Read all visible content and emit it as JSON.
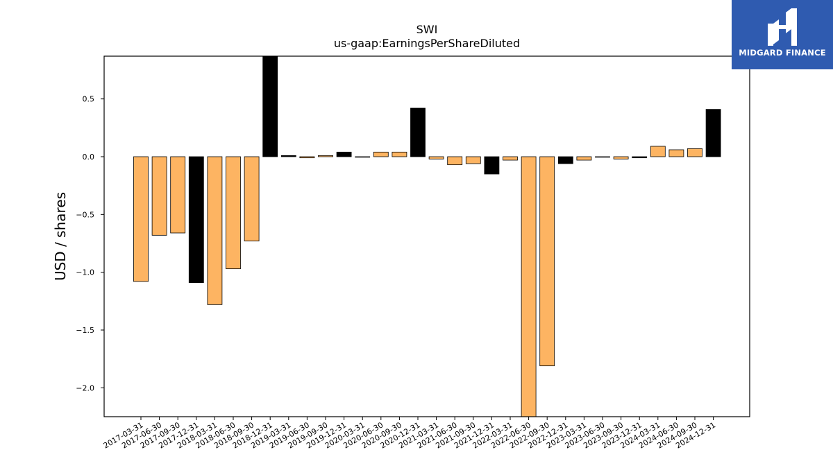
{
  "brand": {
    "name": "MIDGARD FINANCE",
    "background": "#2f5bb0"
  },
  "chart_data": {
    "type": "bar",
    "title": "SWI",
    "subtitle": "us-gaap:EarningsPerShareDiluted",
    "ylabel": "USD / shares",
    "xlabel": "",
    "ylim": [
      -2.25,
      0.87
    ],
    "yticks": [
      0.5,
      0.0,
      -0.5,
      -1.0,
      -1.5,
      -2.0
    ],
    "ytick_labels": [
      "0.5",
      "0.0",
      "−0.5",
      "−1.0",
      "−1.5",
      "−2.0"
    ],
    "colors": {
      "quarterly": "#fdb462",
      "annual": "#000000"
    },
    "categories": [
      "2017-03-31",
      "2017-06-30",
      "2017-09-30",
      "2017-12-31",
      "2018-03-31",
      "2018-06-30",
      "2018-09-30",
      "2018-12-31",
      "2019-03-31",
      "2019-06-30",
      "2019-09-30",
      "2019-12-31",
      "2020-03-31",
      "2020-06-30",
      "2020-09-30",
      "2020-12-31",
      "2021-03-31",
      "2021-06-30",
      "2021-09-30",
      "2021-12-31",
      "2022-03-31",
      "2022-06-30",
      "2022-09-30",
      "2022-12-31",
      "2023-03-31",
      "2023-06-30",
      "2023-09-30",
      "2023-12-31",
      "2024-03-31",
      "2024-06-30",
      "2024-09-30",
      "2024-12-31"
    ],
    "values": [
      -1.08,
      -0.68,
      -0.66,
      -1.09,
      -1.28,
      -0.97,
      -0.73,
      0.87,
      0.01,
      -0.01,
      0.01,
      0.04,
      0.0,
      0.04,
      0.04,
      0.42,
      -0.02,
      -0.07,
      -0.06,
      -0.15,
      -0.03,
      -2.25,
      -1.81,
      -0.06,
      -0.03,
      0.0,
      -0.02,
      -0.01,
      0.09,
      0.06,
      0.07,
      0.41
    ],
    "annual": [
      false,
      false,
      false,
      true,
      false,
      false,
      false,
      true,
      true,
      false,
      false,
      true,
      false,
      false,
      false,
      true,
      false,
      false,
      false,
      true,
      false,
      false,
      false,
      true,
      false,
      false,
      false,
      true,
      false,
      false,
      false,
      true
    ]
  }
}
